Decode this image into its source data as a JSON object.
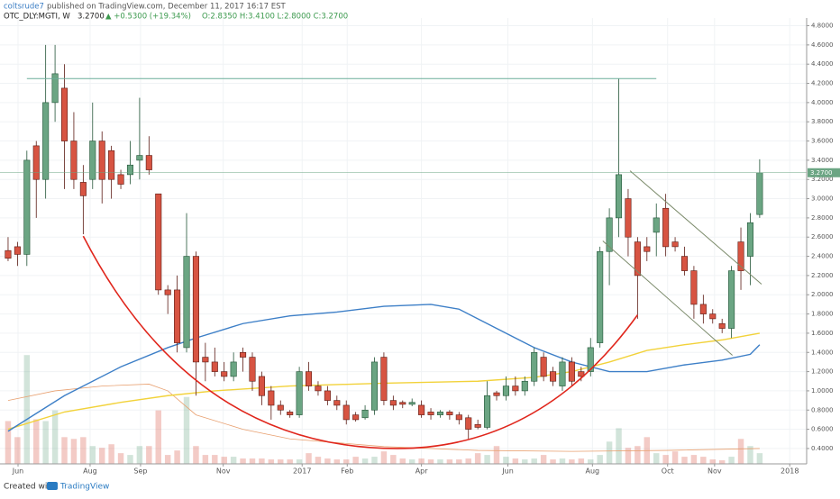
{
  "header": {
    "author": "coltsrude7",
    "published": "published on TradingView.com, December 11, 2017 16:17 EST",
    "symbol": "OTC_DLY:MGTI, W",
    "last": "3.2700",
    "change": "▲ +0.5300 (+19.34%)",
    "ohlc": "O:2.8350 H:3.4100 L:2.8000 C:3.2700"
  },
  "footer": {
    "created": "Created with",
    "brand": "TradingView"
  },
  "chart_data": {
    "type": "candlestick",
    "x": [
      0,
      1,
      2,
      3,
      4,
      5,
      6,
      7,
      8,
      9,
      10,
      11,
      12,
      13,
      14,
      15,
      16,
      17,
      18,
      19,
      20,
      21,
      22,
      23,
      24,
      25,
      26,
      27,
      28,
      29,
      30,
      31,
      32,
      33,
      34,
      35,
      36,
      37,
      38,
      39,
      40,
      41,
      42,
      43,
      44,
      45,
      46,
      47,
      48,
      49,
      50,
      51,
      52,
      53,
      54,
      55,
      56,
      57,
      58,
      59,
      60,
      61,
      62,
      63,
      64,
      65,
      66,
      67,
      68,
      69,
      70,
      71,
      72,
      73,
      74,
      75,
      76,
      77,
      78,
      79,
      80
    ],
    "open": [
      2.46,
      2.5,
      2.42,
      3.55,
      3.2,
      4.0,
      4.15,
      3.6,
      3.17,
      3.2,
      3.6,
      3.5,
      3.25,
      3.25,
      3.4,
      3.45,
      3.05,
      2.05,
      2.05,
      1.45,
      2.4,
      1.35,
      1.3,
      1.2,
      1.15,
      1.4,
      1.35,
      1.15,
      1.0,
      0.85,
      0.78,
      0.75,
      1.2,
      1.05,
      1.0,
      0.9,
      0.85,
      0.75,
      0.72,
      0.8,
      1.35,
      0.9,
      0.88,
      0.86,
      0.85,
      0.78,
      0.75,
      0.78,
      0.75,
      0.72,
      0.65,
      0.62,
      0.98,
      0.95,
      1.05,
      1.0,
      1.1,
      1.35,
      1.2,
      1.05,
      1.3,
      1.2,
      1.2,
      1.5,
      2.45,
      2.8,
      3.0,
      2.55,
      2.5,
      2.65,
      2.9,
      2.55,
      2.4,
      2.25,
      1.9,
      1.8,
      1.7,
      1.65,
      2.55,
      2.4,
      2.835
    ],
    "high": [
      2.6,
      2.55,
      3.5,
      3.6,
      4.6,
      4.6,
      4.4,
      3.9,
      3.35,
      4.0,
      3.7,
      3.55,
      3.3,
      3.6,
      4.05,
      3.65,
      3.05,
      2.1,
      2.2,
      2.85,
      2.45,
      1.5,
      1.45,
      1.3,
      1.4,
      1.45,
      1.4,
      1.2,
      1.05,
      0.9,
      0.8,
      1.25,
      1.3,
      1.1,
      1.05,
      0.95,
      0.9,
      0.78,
      0.85,
      1.35,
      1.4,
      0.95,
      0.9,
      0.92,
      0.9,
      0.82,
      0.8,
      0.8,
      0.78,
      0.75,
      0.7,
      1.1,
      1.0,
      1.15,
      1.15,
      1.15,
      1.45,
      1.4,
      1.25,
      1.35,
      1.35,
      1.25,
      1.55,
      2.5,
      2.9,
      4.25,
      3.1,
      2.6,
      2.6,
      2.95,
      3.05,
      2.6,
      2.5,
      2.3,
      2.0,
      1.85,
      1.75,
      2.3,
      2.7,
      2.85,
      3.41
    ],
    "low": [
      2.35,
      2.3,
      2.3,
      2.8,
      3.0,
      3.8,
      3.1,
      3.1,
      2.63,
      3.1,
      2.95,
      3.0,
      3.1,
      3.15,
      3.2,
      3.25,
      2.0,
      1.8,
      1.4,
      1.4,
      0.95,
      1.1,
      1.15,
      1.1,
      1.1,
      1.2,
      1.0,
      0.85,
      0.7,
      0.75,
      0.72,
      0.72,
      1.0,
      0.95,
      0.85,
      0.8,
      0.65,
      0.68,
      0.7,
      0.75,
      0.85,
      0.8,
      0.82,
      0.84,
      0.72,
      0.7,
      0.72,
      0.7,
      0.65,
      0.5,
      0.6,
      0.6,
      0.9,
      0.9,
      0.95,
      0.95,
      1.05,
      1.1,
      1.05,
      1.0,
      1.05,
      1.1,
      1.15,
      1.45,
      2.1,
      2.6,
      2.4,
      1.75,
      2.35,
      2.4,
      2.4,
      2.45,
      2.2,
      1.75,
      1.7,
      1.7,
      1.6,
      1.55,
      2.05,
      2.1,
      2.8
    ],
    "close": [
      2.38,
      2.42,
      3.4,
      3.2,
      4.0,
      4.3,
      3.6,
      3.2,
      3.03,
      3.6,
      3.2,
      3.2,
      3.15,
      3.35,
      3.45,
      3.3,
      2.05,
      2.0,
      1.5,
      2.4,
      1.3,
      1.3,
      1.2,
      1.15,
      1.3,
      1.35,
      1.1,
      0.95,
      0.85,
      0.8,
      0.75,
      1.2,
      1.05,
      1.0,
      0.9,
      0.85,
      0.7,
      0.7,
      0.8,
      1.3,
      0.9,
      0.85,
      0.86,
      0.88,
      0.75,
      0.75,
      0.78,
      0.75,
      0.7,
      0.6,
      0.62,
      0.95,
      0.95,
      1.05,
      1.0,
      1.1,
      1.4,
      1.15,
      1.1,
      1.3,
      1.1,
      1.15,
      1.45,
      2.45,
      2.8,
      3.25,
      2.6,
      2.2,
      2.45,
      2.8,
      2.5,
      2.5,
      2.25,
      1.9,
      1.8,
      1.75,
      1.65,
      2.25,
      2.25,
      2.75,
      3.27
    ],
    "volume": [
      48,
      30,
      122,
      50,
      48,
      60,
      30,
      28,
      30,
      20,
      18,
      22,
      12,
      10,
      20,
      20,
      60,
      10,
      15,
      75,
      20,
      10,
      10,
      8,
      8,
      6,
      6,
      6,
      5,
      5,
      5,
      5,
      12,
      8,
      6,
      5,
      5,
      8,
      6,
      8,
      14,
      10,
      6,
      5,
      6,
      5,
      5,
      5,
      5,
      6,
      12,
      10,
      20,
      8,
      6,
      5,
      6,
      10,
      5,
      6,
      5,
      6,
      5,
      10,
      25,
      40,
      18,
      20,
      30,
      12,
      10,
      14,
      8,
      10,
      8,
      5,
      4,
      8,
      28,
      20,
      12
    ],
    "vlim": [
      0,
      130
    ],
    "up_color": "#6ba583",
    "down_color": "#d75442",
    "xlim": [
      -0.86,
      85
    ],
    "ylim": [
      0.24,
      4.88
    ],
    "xticks": [
      {
        "value": 1.06,
        "label": "Jun"
      },
      {
        "value": 8.73,
        "label": "Aug"
      },
      {
        "value": 14.1,
        "label": "Sep"
      },
      {
        "value": 22.9,
        "label": "Nov"
      },
      {
        "value": 31.3,
        "label": "2017"
      },
      {
        "value": 36.1,
        "label": "Feb"
      },
      {
        "value": 44.0,
        "label": "Apr"
      },
      {
        "value": 53.2,
        "label": "Jun"
      },
      {
        "value": 62.2,
        "label": "Aug"
      },
      {
        "value": 70.2,
        "label": "Oct"
      },
      {
        "value": 75.2,
        "label": "Nov"
      },
      {
        "value": 83.2,
        "label": "2018"
      }
    ],
    "yticks": [
      {
        "value": 0.4,
        "label": "0.4000"
      },
      {
        "value": 0.6,
        "label": "0.6000"
      },
      {
        "value": 0.8,
        "label": "0.8000"
      },
      {
        "value": 1.0,
        "label": "1.0000"
      },
      {
        "value": 1.2,
        "label": "1.2000"
      },
      {
        "value": 1.4,
        "label": "1.4000"
      },
      {
        "value": 1.6,
        "label": "1.6000"
      },
      {
        "value": 1.8,
        "label": "1.8000"
      },
      {
        "value": 2.0,
        "label": "2.0000"
      },
      {
        "value": 2.2,
        "label": "2.2000"
      },
      {
        "value": 2.4,
        "label": "2.4000"
      },
      {
        "value": 2.6,
        "label": "2.6000"
      },
      {
        "value": 2.8,
        "label": "2.8000"
      },
      {
        "value": 3.0,
        "label": "3.0000"
      },
      {
        "value": 3.2,
        "label": "3.2000"
      },
      {
        "value": 3.4,
        "label": "3.4000"
      },
      {
        "value": 3.6,
        "label": "3.6000"
      },
      {
        "value": 3.8,
        "label": "3.8000"
      },
      {
        "value": 4.0,
        "label": "4.0000"
      },
      {
        "value": 4.2,
        "label": "4.2000"
      },
      {
        "value": 4.4,
        "label": "4.4000"
      },
      {
        "value": 4.6,
        "label": "4.6000"
      },
      {
        "value": 4.8,
        "label": "4.8000"
      }
    ],
    "grid": true,
    "last_price": {
      "value": 3.27,
      "label": "3.2700"
    },
    "overlays": [
      {
        "color": "#e8a070",
        "x": [
          0,
          5,
          10,
          15,
          17,
          20,
          25,
          30,
          40,
          50,
          60,
          70,
          80
        ],
        "values": [
          0.9,
          1.0,
          1.05,
          1.07,
          1.0,
          0.75,
          0.6,
          0.5,
          0.42,
          0.38,
          0.37,
          0.38,
          0.4
        ]
      },
      {
        "color": "#f2d23a",
        "x": [
          0,
          6,
          12,
          17,
          22,
          30,
          40,
          50,
          56,
          60,
          64,
          68,
          72,
          76,
          80
        ],
        "values": [
          0.6,
          0.78,
          0.88,
          0.95,
          1.0,
          1.05,
          1.08,
          1.1,
          1.14,
          1.2,
          1.3,
          1.42,
          1.48,
          1.53,
          1.6
        ]
      },
      {
        "color": "#3d7fc7",
        "x": [
          0,
          6,
          12,
          17,
          20,
          25,
          30,
          35,
          40,
          45,
          48,
          52,
          56,
          60,
          64,
          68,
          72,
          76,
          79,
          80
        ],
        "values": [
          0.58,
          0.95,
          1.25,
          1.45,
          1.55,
          1.7,
          1.78,
          1.82,
          1.88,
          1.9,
          1.85,
          1.65,
          1.45,
          1.3,
          1.2,
          1.2,
          1.27,
          1.32,
          1.38,
          1.48
        ]
      }
    ],
    "drawings": [
      {
        "kind": "line",
        "color": "#6aae9a",
        "x": [
          2,
          69
        ],
        "values": [
          4.25,
          4.25
        ]
      },
      {
        "kind": "curve",
        "color": "#e0261c",
        "x": [
          8,
          41.4,
          67
        ],
        "values": [
          2.61,
          0.4,
          1.79
        ]
      },
      {
        "kind": "line",
        "color": "#7b8a6a",
        "x": [
          66.2,
          80.2
        ],
        "values": [
          3.29,
          2.11
        ]
      },
      {
        "kind": "line",
        "color": "#7b8a6a",
        "x": [
          63.3,
          77.1
        ],
        "values": [
          2.56,
          1.37
        ]
      }
    ]
  }
}
